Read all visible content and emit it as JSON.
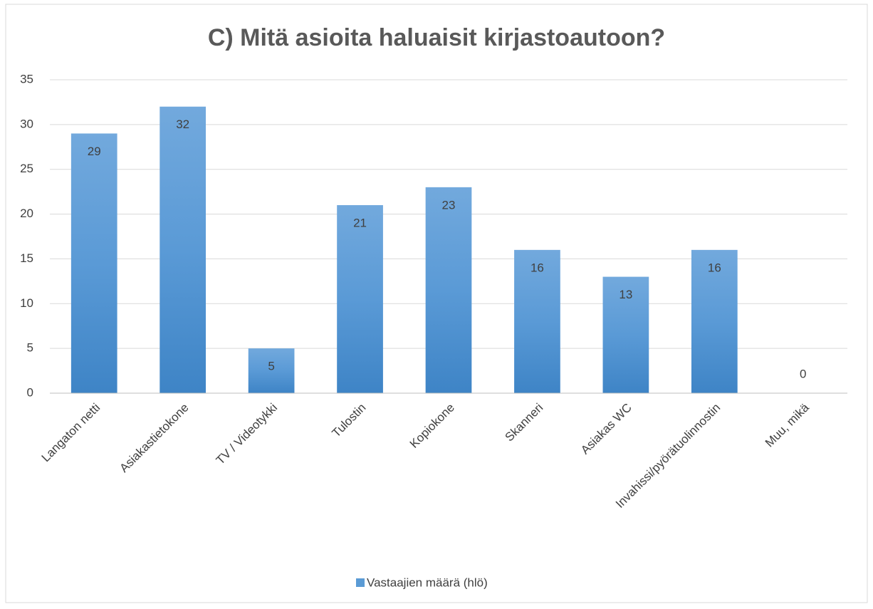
{
  "chart_data": {
    "type": "bar",
    "title": "C) Mitä asioita haluaisit kirjastoautoon?",
    "categories": [
      "Langaton netti",
      "Asiakastietokone",
      "TV / Videotykki",
      "Tulostin",
      "Kopiokone",
      "Skanneri",
      "Asiakas WC",
      "Invahissi/pyörätuolinnostin",
      "Muu, mikä"
    ],
    "series": [
      {
        "name": "Vastaajien määrä (hlö)",
        "color": "#5b9bd5",
        "values": [
          29,
          32,
          5,
          21,
          23,
          16,
          13,
          16,
          0
        ]
      }
    ],
    "ylim": [
      0,
      35
    ],
    "yticks": [
      0,
      5,
      10,
      15,
      20,
      25,
      30,
      35
    ],
    "grid": true,
    "legend": "bottom"
  }
}
